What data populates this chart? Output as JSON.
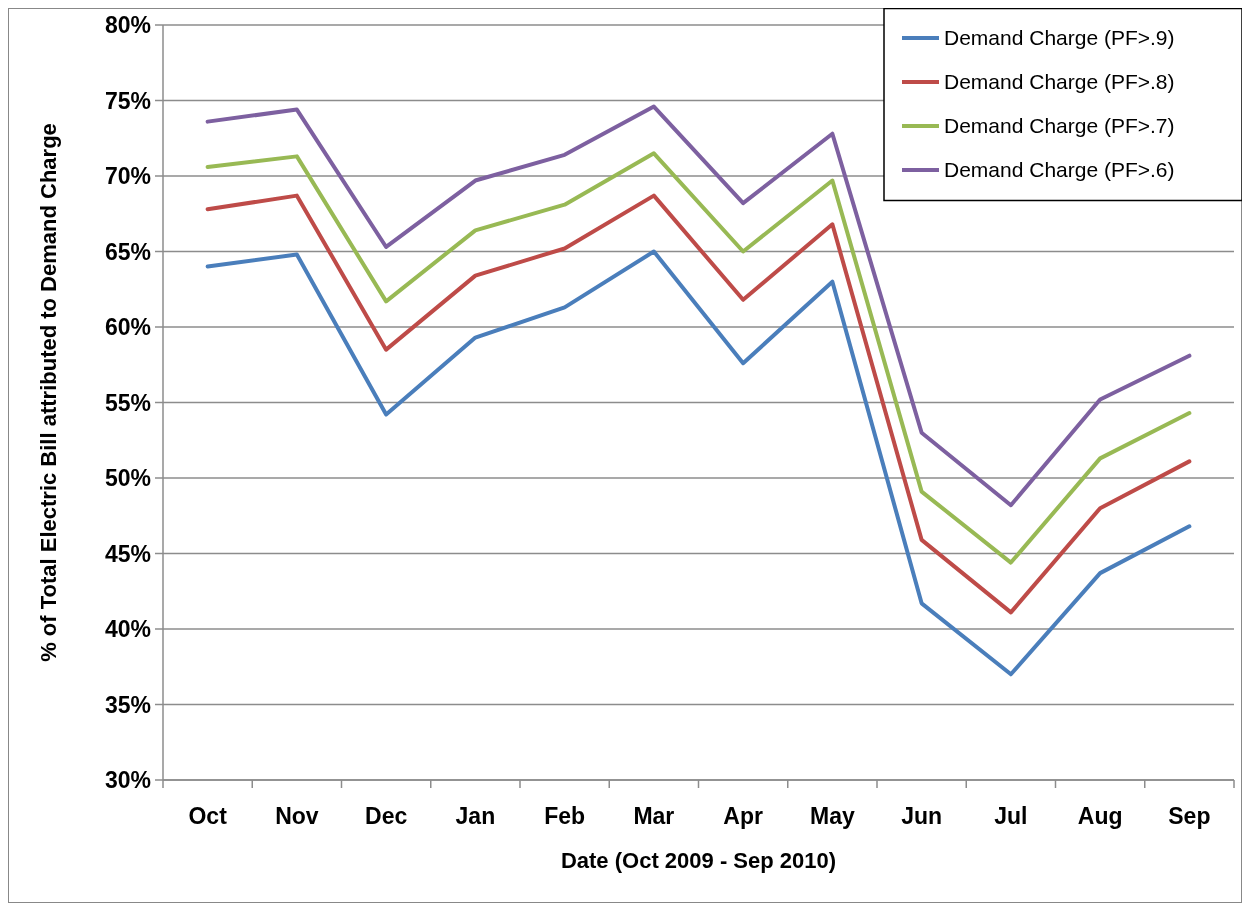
{
  "chart_data": {
    "type": "line",
    "xlabel": "Date (Oct 2009 - Sep 2010)",
    "ylabel": "% of Total Electric Bill attributed to Demand Charge",
    "categories": [
      "Oct",
      "Nov",
      "Dec",
      "Jan",
      "Feb",
      "Mar",
      "Apr",
      "May",
      "Jun",
      "Jul",
      "Aug",
      "Sep"
    ],
    "series": [
      {
        "name": "Demand Charge (PF>.9)",
        "color": "#4a7ebb",
        "values": [
          64.0,
          64.8,
          54.2,
          59.3,
          61.3,
          65.0,
          57.6,
          63.0,
          41.7,
          37.0,
          43.7,
          46.8
        ]
      },
      {
        "name": "Demand Charge (PF>.8)",
        "color": "#be4b48",
        "values": [
          67.8,
          68.7,
          58.5,
          63.4,
          65.2,
          68.7,
          61.8,
          66.8,
          45.9,
          41.1,
          48.0,
          51.1
        ]
      },
      {
        "name": "Demand Charge (PF>.7)",
        "color": "#98b954",
        "values": [
          70.6,
          71.3,
          61.7,
          66.4,
          68.1,
          71.5,
          65.0,
          69.7,
          49.1,
          44.4,
          51.3,
          54.3
        ]
      },
      {
        "name": "Demand Charge (PF>.6)",
        "color": "#7d60a0",
        "values": [
          73.6,
          74.4,
          65.3,
          69.7,
          71.4,
          74.6,
          68.2,
          72.8,
          53.0,
          48.2,
          55.2,
          58.1
        ]
      }
    ],
    "ylim": [
      30,
      80
    ],
    "yticks": [
      {
        "value": 30,
        "label": "30%"
      },
      {
        "value": 35,
        "label": "35%"
      },
      {
        "value": 40,
        "label": "40%"
      },
      {
        "value": 45,
        "label": "45%"
      },
      {
        "value": 50,
        "label": "50%"
      },
      {
        "value": 55,
        "label": "55%"
      },
      {
        "value": 60,
        "label": "60%"
      },
      {
        "value": 65,
        "label": "65%"
      },
      {
        "value": 70,
        "label": "70%"
      },
      {
        "value": 75,
        "label": "75%"
      },
      {
        "value": 80,
        "label": "80%"
      }
    ],
    "grid": "y",
    "legend": "top right",
    "marker": "none",
    "line_style": "solid"
  }
}
